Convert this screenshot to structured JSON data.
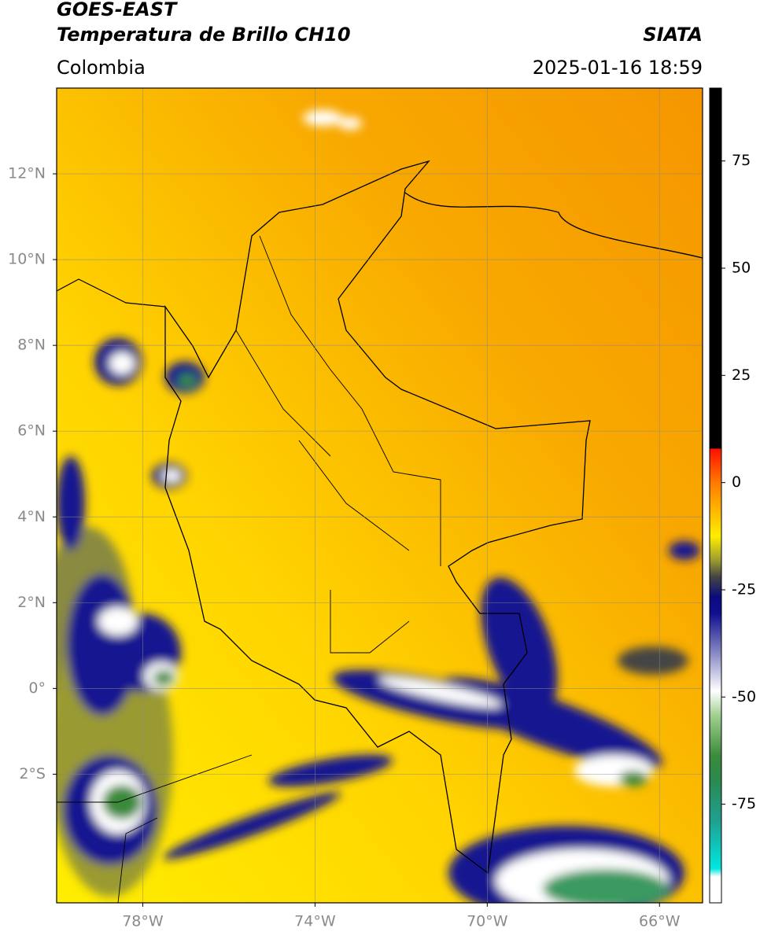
{
  "header": {
    "title": "GOES-EAST",
    "subtitle": "Temperatura de Brillo CH10",
    "source": "SIATA",
    "region": "Colombia",
    "timestamp": "2025-01-16 18:59"
  },
  "chart_data": {
    "type": "map",
    "xlim": [
      -80,
      -65
    ],
    "ylim": [
      -5,
      14
    ],
    "xticks": [
      {
        "value": -78,
        "label": "78°W"
      },
      {
        "value": -74,
        "label": "74°W"
      },
      {
        "value": -70,
        "label": "70°W"
      },
      {
        "value": -66,
        "label": "66°W"
      }
    ],
    "yticks": [
      {
        "value": 12,
        "label": "12°N"
      },
      {
        "value": 10,
        "label": "10°N"
      },
      {
        "value": 8,
        "label": "8°N"
      },
      {
        "value": 6,
        "label": "6°N"
      },
      {
        "value": 4,
        "label": "4°N"
      },
      {
        "value": 2,
        "label": "2°N"
      },
      {
        "value": 0,
        "label": "0°"
      },
      {
        "value": -2,
        "label": "2°S"
      }
    ],
    "grid": true,
    "colorbar": {
      "lim": [
        -98,
        92
      ],
      "ticks": [
        75,
        50,
        25,
        0,
        -25,
        -50,
        -75
      ]
    }
  }
}
